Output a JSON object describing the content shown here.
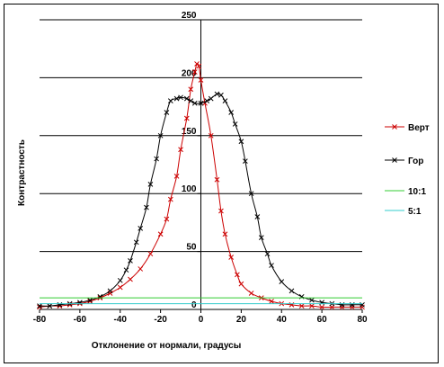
{
  "chart_data": {
    "type": "line",
    "title": "",
    "xlabel": "Отклонение от нормали, градусы",
    "ylabel": "Контрастность",
    "xlim": [
      -80,
      80
    ],
    "ylim": [
      0,
      250
    ],
    "x_ticks": [
      "-80",
      "-60",
      "-40",
      "-20",
      "0",
      "20",
      "40",
      "60",
      "80"
    ],
    "y_ticks": [
      "0",
      "50",
      "100",
      "150",
      "200",
      "250"
    ],
    "grid": "horizontal",
    "legend_position": "right",
    "series": [
      {
        "name": "Верт",
        "color": "#cc0000",
        "marker": "x",
        "points": [
          [
            -80,
            2
          ],
          [
            -75,
            3
          ],
          [
            -70,
            3
          ],
          [
            -65,
            4
          ],
          [
            -60,
            5
          ],
          [
            -55,
            7
          ],
          [
            -50,
            10
          ],
          [
            -45,
            14
          ],
          [
            -40,
            19
          ],
          [
            -35,
            26
          ],
          [
            -30,
            35
          ],
          [
            -25,
            48
          ],
          [
            -20,
            65
          ],
          [
            -17,
            78
          ],
          [
            -15,
            95
          ],
          [
            -12,
            115
          ],
          [
            -10,
            138
          ],
          [
            -7,
            165
          ],
          [
            -5,
            190
          ],
          [
            -3,
            205
          ],
          [
            -2,
            212
          ],
          [
            -1,
            210
          ],
          [
            0,
            198
          ],
          [
            2,
            178
          ],
          [
            5,
            150
          ],
          [
            8,
            112
          ],
          [
            10,
            85
          ],
          [
            12,
            65
          ],
          [
            15,
            45
          ],
          [
            18,
            30
          ],
          [
            20,
            22
          ],
          [
            25,
            14
          ],
          [
            30,
            10
          ],
          [
            35,
            7
          ],
          [
            40,
            5
          ],
          [
            45,
            4
          ],
          [
            50,
            3
          ],
          [
            55,
            3
          ],
          [
            60,
            2
          ],
          [
            65,
            2
          ],
          [
            70,
            2
          ],
          [
            75,
            2
          ],
          [
            80,
            2
          ]
        ]
      },
      {
        "name": "Гор",
        "color": "#000000",
        "marker": "x",
        "points": [
          [
            -80,
            3
          ],
          [
            -75,
            3
          ],
          [
            -70,
            4
          ],
          [
            -65,
            5
          ],
          [
            -60,
            6
          ],
          [
            -55,
            8
          ],
          [
            -50,
            11
          ],
          [
            -45,
            16
          ],
          [
            -40,
            25
          ],
          [
            -37,
            34
          ],
          [
            -35,
            42
          ],
          [
            -32,
            58
          ],
          [
            -30,
            70
          ],
          [
            -27,
            88
          ],
          [
            -25,
            108
          ],
          [
            -22,
            130
          ],
          [
            -20,
            150
          ],
          [
            -17,
            170
          ],
          [
            -15,
            180
          ],
          [
            -12,
            182
          ],
          [
            -10,
            183
          ],
          [
            -7,
            182
          ],
          [
            -5,
            180
          ],
          [
            -3,
            178
          ],
          [
            0,
            178
          ],
          [
            3,
            180
          ],
          [
            5,
            182
          ],
          [
            8,
            186
          ],
          [
            10,
            185
          ],
          [
            12,
            180
          ],
          [
            15,
            170
          ],
          [
            17,
            160
          ],
          [
            20,
            145
          ],
          [
            22,
            128
          ],
          [
            25,
            100
          ],
          [
            28,
            80
          ],
          [
            30,
            62
          ],
          [
            33,
            48
          ],
          [
            35,
            38
          ],
          [
            40,
            24
          ],
          [
            45,
            16
          ],
          [
            50,
            11
          ],
          [
            55,
            8
          ],
          [
            60,
            6
          ],
          [
            65,
            5
          ],
          [
            70,
            4
          ],
          [
            75,
            4
          ],
          [
            80,
            4
          ]
        ]
      },
      {
        "name": "10:1",
        "color": "#33cc33",
        "marker": "none",
        "points": [
          [
            -80,
            10
          ],
          [
            80,
            10
          ]
        ]
      },
      {
        "name": "5:1",
        "color": "#33cccc",
        "marker": "none",
        "points": [
          [
            -80,
            5
          ],
          [
            80,
            5
          ]
        ]
      }
    ]
  }
}
